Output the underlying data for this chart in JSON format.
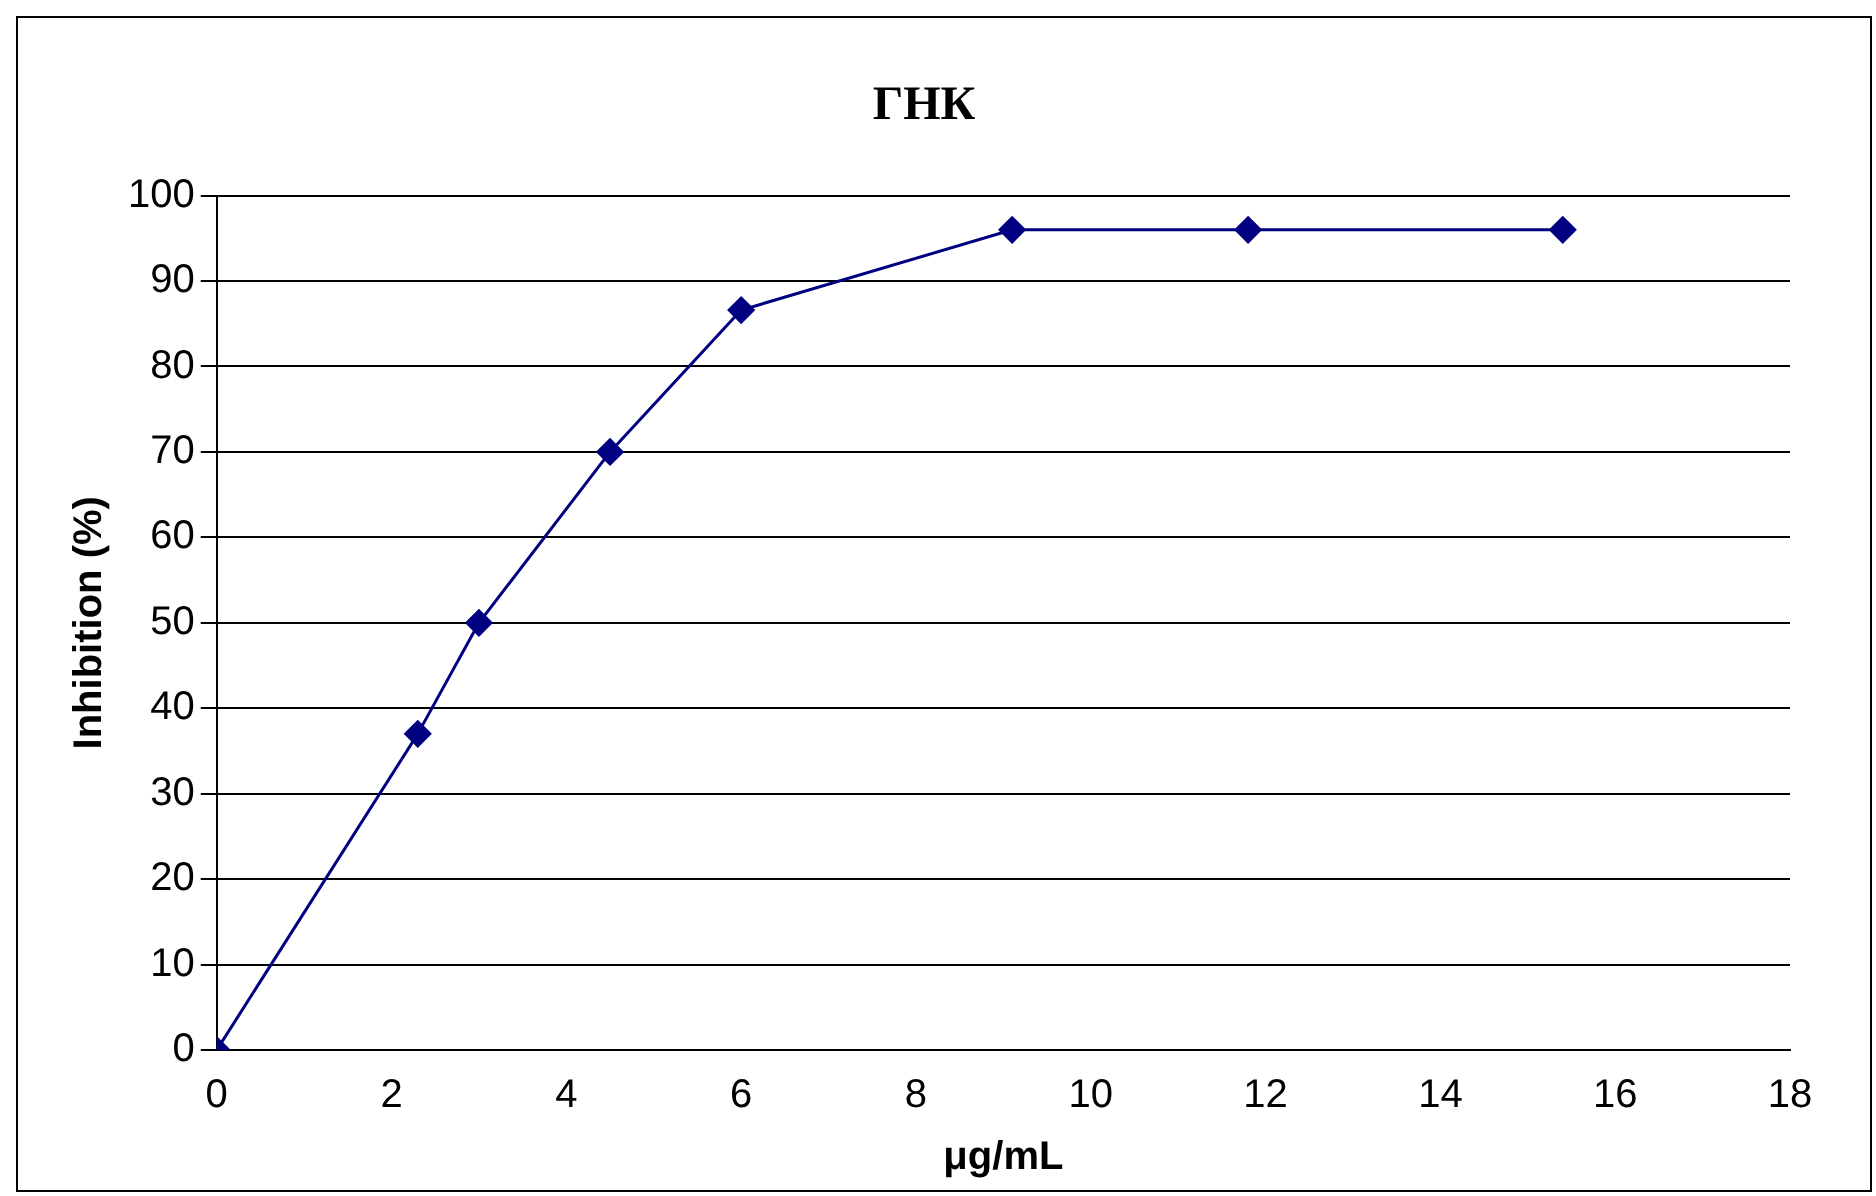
{
  "chart_data": {
    "type": "line",
    "title": "ГНК",
    "xlabel": "μg/mL",
    "ylabel": "Inhibition (%)",
    "x": [
      0,
      2.3,
      3,
      4.5,
      6,
      9.1,
      11.8,
      15.4
    ],
    "series": [
      {
        "color": "#000080",
        "values": [
          0,
          37,
          50,
          70,
          86.6,
          96,
          96,
          96
        ]
      }
    ],
    "xlim": [
      0,
      18
    ],
    "xticks": [
      0,
      2,
      4,
      6,
      8,
      10,
      12,
      14,
      16,
      18
    ],
    "ylim": [
      0,
      100
    ],
    "yticks": [
      0,
      10,
      20,
      30,
      40,
      50,
      60,
      70,
      80,
      90,
      100
    ],
    "grid": "y",
    "legend": false,
    "marker": "diamond",
    "line_style": "solid"
  }
}
